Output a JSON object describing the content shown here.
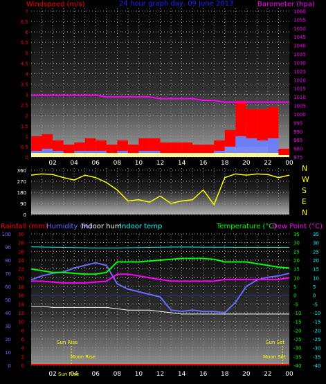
{
  "title": "24 hour graph day, 09 June 2013",
  "colors": {
    "wind": "#ff0000",
    "wind_avg": "#6a7cff",
    "direction": "#ffff00",
    "pressure": "#ff00ff",
    "rain": "#ff0000",
    "humidity": "#6a6aff",
    "indoor_hum": "#ffffff",
    "indoor_temp": "#00ffff",
    "temperature": "#00ff00",
    "dew_point": "#ff00ff",
    "solar": "#ffff99"
  },
  "chart_data": [
    {
      "type": "bar",
      "title": "24 hour graph day, 09 June 2013",
      "ylabel": "Windspeed (m/s)",
      "ylabel_right": "Barometer (hpa)",
      "ylim": [
        0,
        7
      ],
      "ylim_right": [
        975,
        1060
      ],
      "yticks_left": [
        "0",
        "0.5",
        "1",
        "1.5",
        "2",
        "2.5",
        "3",
        "3.5",
        "4",
        "4.5",
        "5",
        "5.5",
        "6",
        "6.5",
        "7"
      ],
      "yticks_right": [
        "975",
        "980",
        "985",
        "990",
        "995",
        "1000",
        "1005",
        "1010",
        "1015",
        "1020",
        "1025",
        "1030",
        "1035",
        "1040",
        "1045",
        "1050",
        "1055",
        "1060"
      ],
      "x_ticks": [
        "02",
        "04",
        "06",
        "08",
        "10",
        "12",
        "14",
        "16",
        "18",
        "20",
        "22",
        "00"
      ],
      "hours": [
        0,
        1,
        2,
        3,
        4,
        5,
        6,
        7,
        8,
        9,
        10,
        11,
        12,
        13,
        14,
        15,
        16,
        17,
        18,
        19,
        20,
        21,
        22,
        23,
        24
      ],
      "series": [
        {
          "name": "Windspeed",
          "values": [
            1.0,
            1.1,
            0.8,
            0.6,
            0.7,
            0.9,
            0.8,
            0.6,
            0.8,
            0.6,
            0.9,
            0.9,
            0.7,
            0.7,
            0.7,
            0.6,
            0.6,
            0.8,
            1.3,
            2.7,
            2.3,
            2.3,
            2.4,
            0.4,
            0.3
          ]
        },
        {
          "name": "Windspeed avg",
          "values": [
            0.3,
            0.4,
            0.3,
            0.2,
            0.3,
            0.3,
            0.3,
            0.2,
            0.3,
            0.2,
            0.3,
            0.3,
            0.2,
            0.2,
            0.2,
            0.2,
            0.2,
            0.3,
            0.5,
            1.0,
            0.9,
            0.8,
            0.9,
            0.1,
            0.1
          ]
        },
        {
          "name": "Barometer",
          "values": [
            1011,
            1011,
            1011,
            1011,
            1011,
            1011,
            1011,
            1010,
            1010,
            1010,
            1010,
            1010,
            1009,
            1009,
            1009,
            1009,
            1008,
            1008,
            1007,
            1007,
            1007,
            1007,
            1007,
            1007,
            1007
          ]
        }
      ]
    },
    {
      "type": "line",
      "ylabel_right": "N W S E N",
      "ylim": [
        0,
        360
      ],
      "yticks_left": [
        "0",
        "90",
        "180",
        "270",
        "360"
      ],
      "compass": [
        "N",
        "W",
        "S",
        "E",
        "N"
      ],
      "hours": [
        0,
        1,
        2,
        3,
        4,
        5,
        6,
        7,
        8,
        9,
        10,
        11,
        12,
        13,
        14,
        15,
        16,
        17,
        18,
        19,
        20,
        21,
        22,
        23,
        24
      ],
      "series": [
        {
          "name": "Wind direction",
          "values": [
            320,
            330,
            325,
            300,
            280,
            320,
            300,
            260,
            200,
            110,
            120,
            100,
            150,
            90,
            110,
            120,
            200,
            80,
            300,
            330,
            320,
            330,
            325,
            300,
            320
          ]
        }
      ]
    },
    {
      "type": "line",
      "ylabels": [
        "Rainfall (mm)",
        "Humidity (%)",
        "Indoor hum",
        "Indoor temp",
        "Temperature (°C)",
        "Dew Point (°C)"
      ],
      "yticks_rain": [
        "0",
        "2",
        "4",
        "6",
        "8",
        "10",
        "12",
        "14",
        "16",
        "18",
        "20",
        "22",
        "24",
        "26",
        "28",
        "30"
      ],
      "yticks_hum": [
        "0",
        "10",
        "20",
        "30",
        "40",
        "50",
        "60",
        "70",
        "80",
        "90",
        "100"
      ],
      "yticks_temp": [
        "-40",
        "-35",
        "-30",
        "-25",
        "-20",
        "-15",
        "-10",
        "-5",
        "0",
        "5",
        "10",
        "15",
        "20",
        "25",
        "30",
        "35"
      ],
      "x_ticks": [
        "02",
        "04",
        "06",
        "08",
        "10",
        "12",
        "14",
        "16",
        "18",
        "20",
        "22",
        "00"
      ],
      "sun_rise": "Sun Rise",
      "sun_set": "Sun Set",
      "moon_rise": "Moon Rise",
      "moon_set": "Moon Set",
      "sun_rise_label": "Sun Rise",
      "hours": [
        0,
        1,
        2,
        3,
        4,
        5,
        6,
        7,
        8,
        9,
        10,
        11,
        12,
        13,
        14,
        15,
        16,
        17,
        18,
        19,
        20,
        21,
        22,
        23,
        24
      ],
      "series": [
        {
          "name": "Humidity",
          "values": [
            65,
            68,
            70,
            71,
            74,
            76,
            78,
            76,
            62,
            58,
            56,
            54,
            52,
            42,
            41,
            42,
            41,
            41,
            40,
            48,
            60,
            65,
            67,
            68,
            70
          ]
        },
        {
          "name": "Indoor hum",
          "values": [
            45,
            45,
            44,
            44,
            44,
            44,
            44,
            44,
            43,
            42,
            42,
            42,
            41,
            40,
            39,
            39,
            39,
            39,
            39,
            39,
            39,
            39,
            39,
            39,
            39
          ]
        },
        {
          "name": "Indoor temp",
          "values": [
            27.6,
            27.5,
            27.4,
            27.3,
            27.2,
            27.1,
            27.0,
            27.0,
            27.0,
            27.1,
            27.2,
            27.3,
            27.4,
            27.5,
            27.5,
            27.5,
            27.4,
            27.4,
            27.4,
            27.3,
            27.3,
            27.3,
            27.3,
            27.3,
            27.3
          ]
        },
        {
          "name": "Temperature",
          "values": [
            15,
            14,
            13,
            13,
            12.5,
            12,
            12,
            13,
            19,
            19,
            19,
            19.5,
            20,
            20.5,
            21,
            21,
            21,
            20.5,
            19,
            19,
            19,
            18,
            17,
            16,
            15.5
          ]
        },
        {
          "name": "Dew Point",
          "values": [
            8,
            8,
            7.5,
            7,
            7,
            7,
            7.5,
            8,
            12,
            12,
            11,
            10,
            9,
            8,
            8,
            8,
            8,
            8,
            9,
            9,
            9,
            9,
            9,
            9,
            10
          ]
        },
        {
          "name": "Rainfall",
          "values": [
            0,
            0,
            0,
            0,
            0,
            0,
            0,
            0,
            0,
            0,
            0,
            0,
            0,
            0,
            0,
            0,
            0,
            0,
            0,
            0,
            0,
            0,
            0,
            0,
            0
          ]
        }
      ]
    }
  ]
}
